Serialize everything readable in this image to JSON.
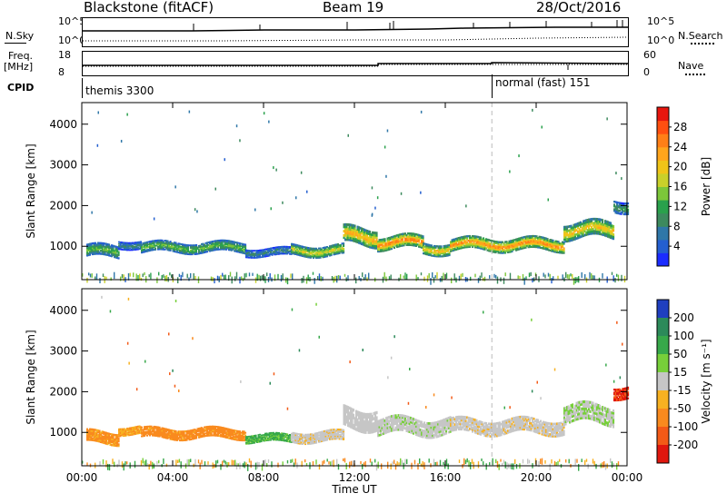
{
  "header": {
    "station": "Blackstone (fitACF)",
    "beam": "Beam 19",
    "date": "28/Oct/2016"
  },
  "summary": {
    "nsky_label": "N.Sky",
    "nsearch_label": "N.Search",
    "noise_ticks": [
      "10^5",
      "10^0"
    ],
    "freq_label": "Freq.",
    "freq_unit": "[MHz]",
    "freq_ticks": [
      "18",
      "8"
    ],
    "nave_label": "Nave",
    "nave_ticks": [
      "60",
      "0"
    ],
    "cpid_label": "CPID",
    "cpid_segments": [
      "themis 3300",
      "normal (fast) 151"
    ]
  },
  "chart_data": [
    {
      "type": "heatmap",
      "title": "",
      "xlabel": "Time UT",
      "ylabel": "Slant Range [km]",
      "x_ticks": [
        "00:00",
        "04:00",
        "08:00",
        "12:00",
        "16:00",
        "20:00",
        "00:00"
      ],
      "xlim": [
        0,
        24
      ],
      "y_ticks": [
        1000,
        2000,
        3000,
        4000
      ],
      "ylim": [
        180,
        4530
      ],
      "colorbar": {
        "label": "Power [dB]",
        "ticks": [
          4,
          8,
          12,
          16,
          20,
          24,
          28
        ],
        "range": [
          0,
          32
        ],
        "colors": [
          "#1b2cff",
          "#245fd0",
          "#2f77a8",
          "#3d8a5e",
          "#2aa14c",
          "#7cc63a",
          "#c9d02a",
          "#f0c418",
          "#ffa51c",
          "#ff7f17",
          "#ff4f10",
          "#e8160e"
        ]
      },
      "echo_bands": [
        {
          "t_start": 0.2,
          "t_end": 1.6,
          "range_km": 880,
          "width_km": 300,
          "level": 14
        },
        {
          "t_start": 1.6,
          "t_end": 2.6,
          "range_km": 1050,
          "width_km": 200,
          "level": 9
        },
        {
          "t_start": 2.6,
          "t_end": 7.2,
          "range_km": 980,
          "width_km": 250,
          "level": 15
        },
        {
          "t_start": 7.2,
          "t_end": 9.2,
          "range_km": 860,
          "width_km": 200,
          "level": 9
        },
        {
          "t_start": 9.2,
          "t_end": 11.5,
          "range_km": 900,
          "width_km": 260,
          "level": 19
        },
        {
          "t_start": 11.5,
          "t_end": 13.0,
          "range_km": 1250,
          "width_km": 420,
          "level": 24
        },
        {
          "t_start": 13.0,
          "t_end": 15.0,
          "range_km": 1100,
          "width_km": 320,
          "level": 27
        },
        {
          "t_start": 15.0,
          "t_end": 16.2,
          "range_km": 950,
          "width_km": 280,
          "level": 22
        },
        {
          "t_start": 16.2,
          "t_end": 21.2,
          "range_km": 1050,
          "width_km": 300,
          "level": 26
        },
        {
          "t_start": 21.2,
          "t_end": 23.4,
          "range_km": 1400,
          "width_km": 400,
          "level": 22
        },
        {
          "t_start": 23.4,
          "t_end": 24.0,
          "range_km": 2000,
          "width_km": 300,
          "level": 12
        }
      ]
    },
    {
      "type": "heatmap",
      "title": "",
      "xlabel": "Time UT",
      "ylabel": "Slant Range [km]",
      "x_ticks": [
        "00:00",
        "04:00",
        "08:00",
        "12:00",
        "16:00",
        "20:00",
        "00:00"
      ],
      "xlim": [
        0,
        24
      ],
      "y_ticks": [
        1000,
        2000,
        3000,
        4000
      ],
      "ylim": [
        180,
        4530
      ],
      "colorbar": {
        "label": "Velocity [m s⁻¹]",
        "ticks": [
          200,
          100,
          50,
          15,
          -15,
          -50,
          -100,
          -200
        ],
        "colors": [
          "#1f3fbf",
          "#2c8a5a",
          "#37a84a",
          "#77cf3a",
          "#c6c6c6",
          "#f7b121",
          "#f98a1e",
          "#f35a17",
          "#e0170e"
        ]
      },
      "echo_bands": [
        {
          "t_start": 0.2,
          "t_end": 1.6,
          "range_km": 880,
          "width_km": 300,
          "level": -40
        },
        {
          "t_start": 1.6,
          "t_end": 2.6,
          "range_km": 1050,
          "width_km": 200,
          "level": -30
        },
        {
          "t_start": 2.6,
          "t_end": 7.2,
          "range_km": 980,
          "width_km": 250,
          "level": -45
        },
        {
          "t_start": 7.2,
          "t_end": 9.2,
          "range_km": 860,
          "width_km": 200,
          "level": 40
        },
        {
          "t_start": 9.2,
          "t_end": 11.5,
          "range_km": 900,
          "width_km": 260,
          "level": -5
        },
        {
          "t_start": 11.5,
          "t_end": 13.0,
          "range_km": 1350,
          "width_km": 500,
          "level": 0
        },
        {
          "t_start": 13.0,
          "t_end": 16.2,
          "range_km": 1150,
          "width_km": 400,
          "level": 5
        },
        {
          "t_start": 16.2,
          "t_end": 21.2,
          "range_km": 1150,
          "width_km": 350,
          "level": -5
        },
        {
          "t_start": 21.2,
          "t_end": 23.4,
          "range_km": 1450,
          "width_km": 450,
          "level": 10
        },
        {
          "t_start": 23.4,
          "t_end": 24.0,
          "range_km": 2000,
          "width_km": 300,
          "level": -150
        }
      ]
    }
  ]
}
